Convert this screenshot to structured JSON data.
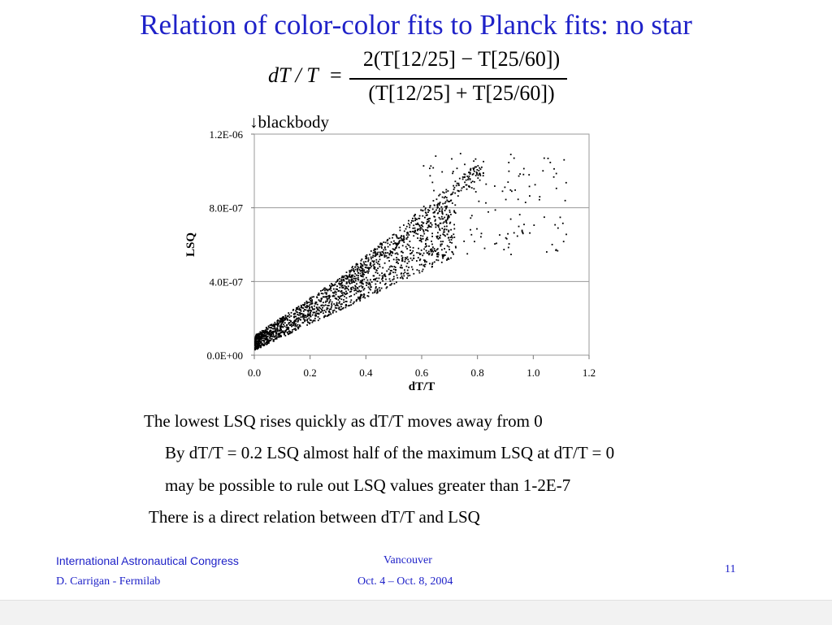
{
  "slide": {
    "title": "Relation of color-color fits to Planck fits: no star"
  },
  "formula": {
    "lhs": "dT / T",
    "equals": "=",
    "numerator": "2(T[12/25] − T[25/60])",
    "denominator": "(T[12/25] + T[25/60])"
  },
  "annotation": {
    "blackbody": "↓blackbody"
  },
  "chart_data": {
    "type": "scatter",
    "title": "",
    "xlabel": "dT/T",
    "ylabel": "LSQ",
    "xlim": [
      0.0,
      1.2
    ],
    "ylim": [
      0.0,
      1.2e-06
    ],
    "xticks": [
      "0.0",
      "0.2",
      "0.4",
      "0.6",
      "0.8",
      "1.0",
      "1.2"
    ],
    "yticks": [
      "0.0E+00",
      "4.0E-07",
      "8.0E-07",
      "1.2E-06"
    ],
    "grid": "horizontal",
    "point_color": "#000000",
    "series_trend": {
      "lower_branch_slope": 8.2e-07,
      "upper_branch_slope": 1.25e-06,
      "x_max": 1.12
    }
  },
  "bullets": [
    "The lowest LSQ rises quickly as dT/T moves away from 0",
    "By dT/T = 0.2 LSQ almost half of the maximum LSQ at dT/T = 0",
    "may be possible to rule out LSQ values greater than 1-2E-7",
    "There is a direct relation between dT/T and LSQ"
  ],
  "footer": {
    "conference": "International Astronautical Congress",
    "author": "D. Carrigan - Fermilab",
    "city": "Vancouver",
    "dates": "Oct. 4 – Oct. 8, 2004",
    "page_number": "11"
  },
  "colors": {
    "title": "#1f22c8",
    "footer_link": "#1f22c8",
    "grid": "#9a9a9a"
  }
}
